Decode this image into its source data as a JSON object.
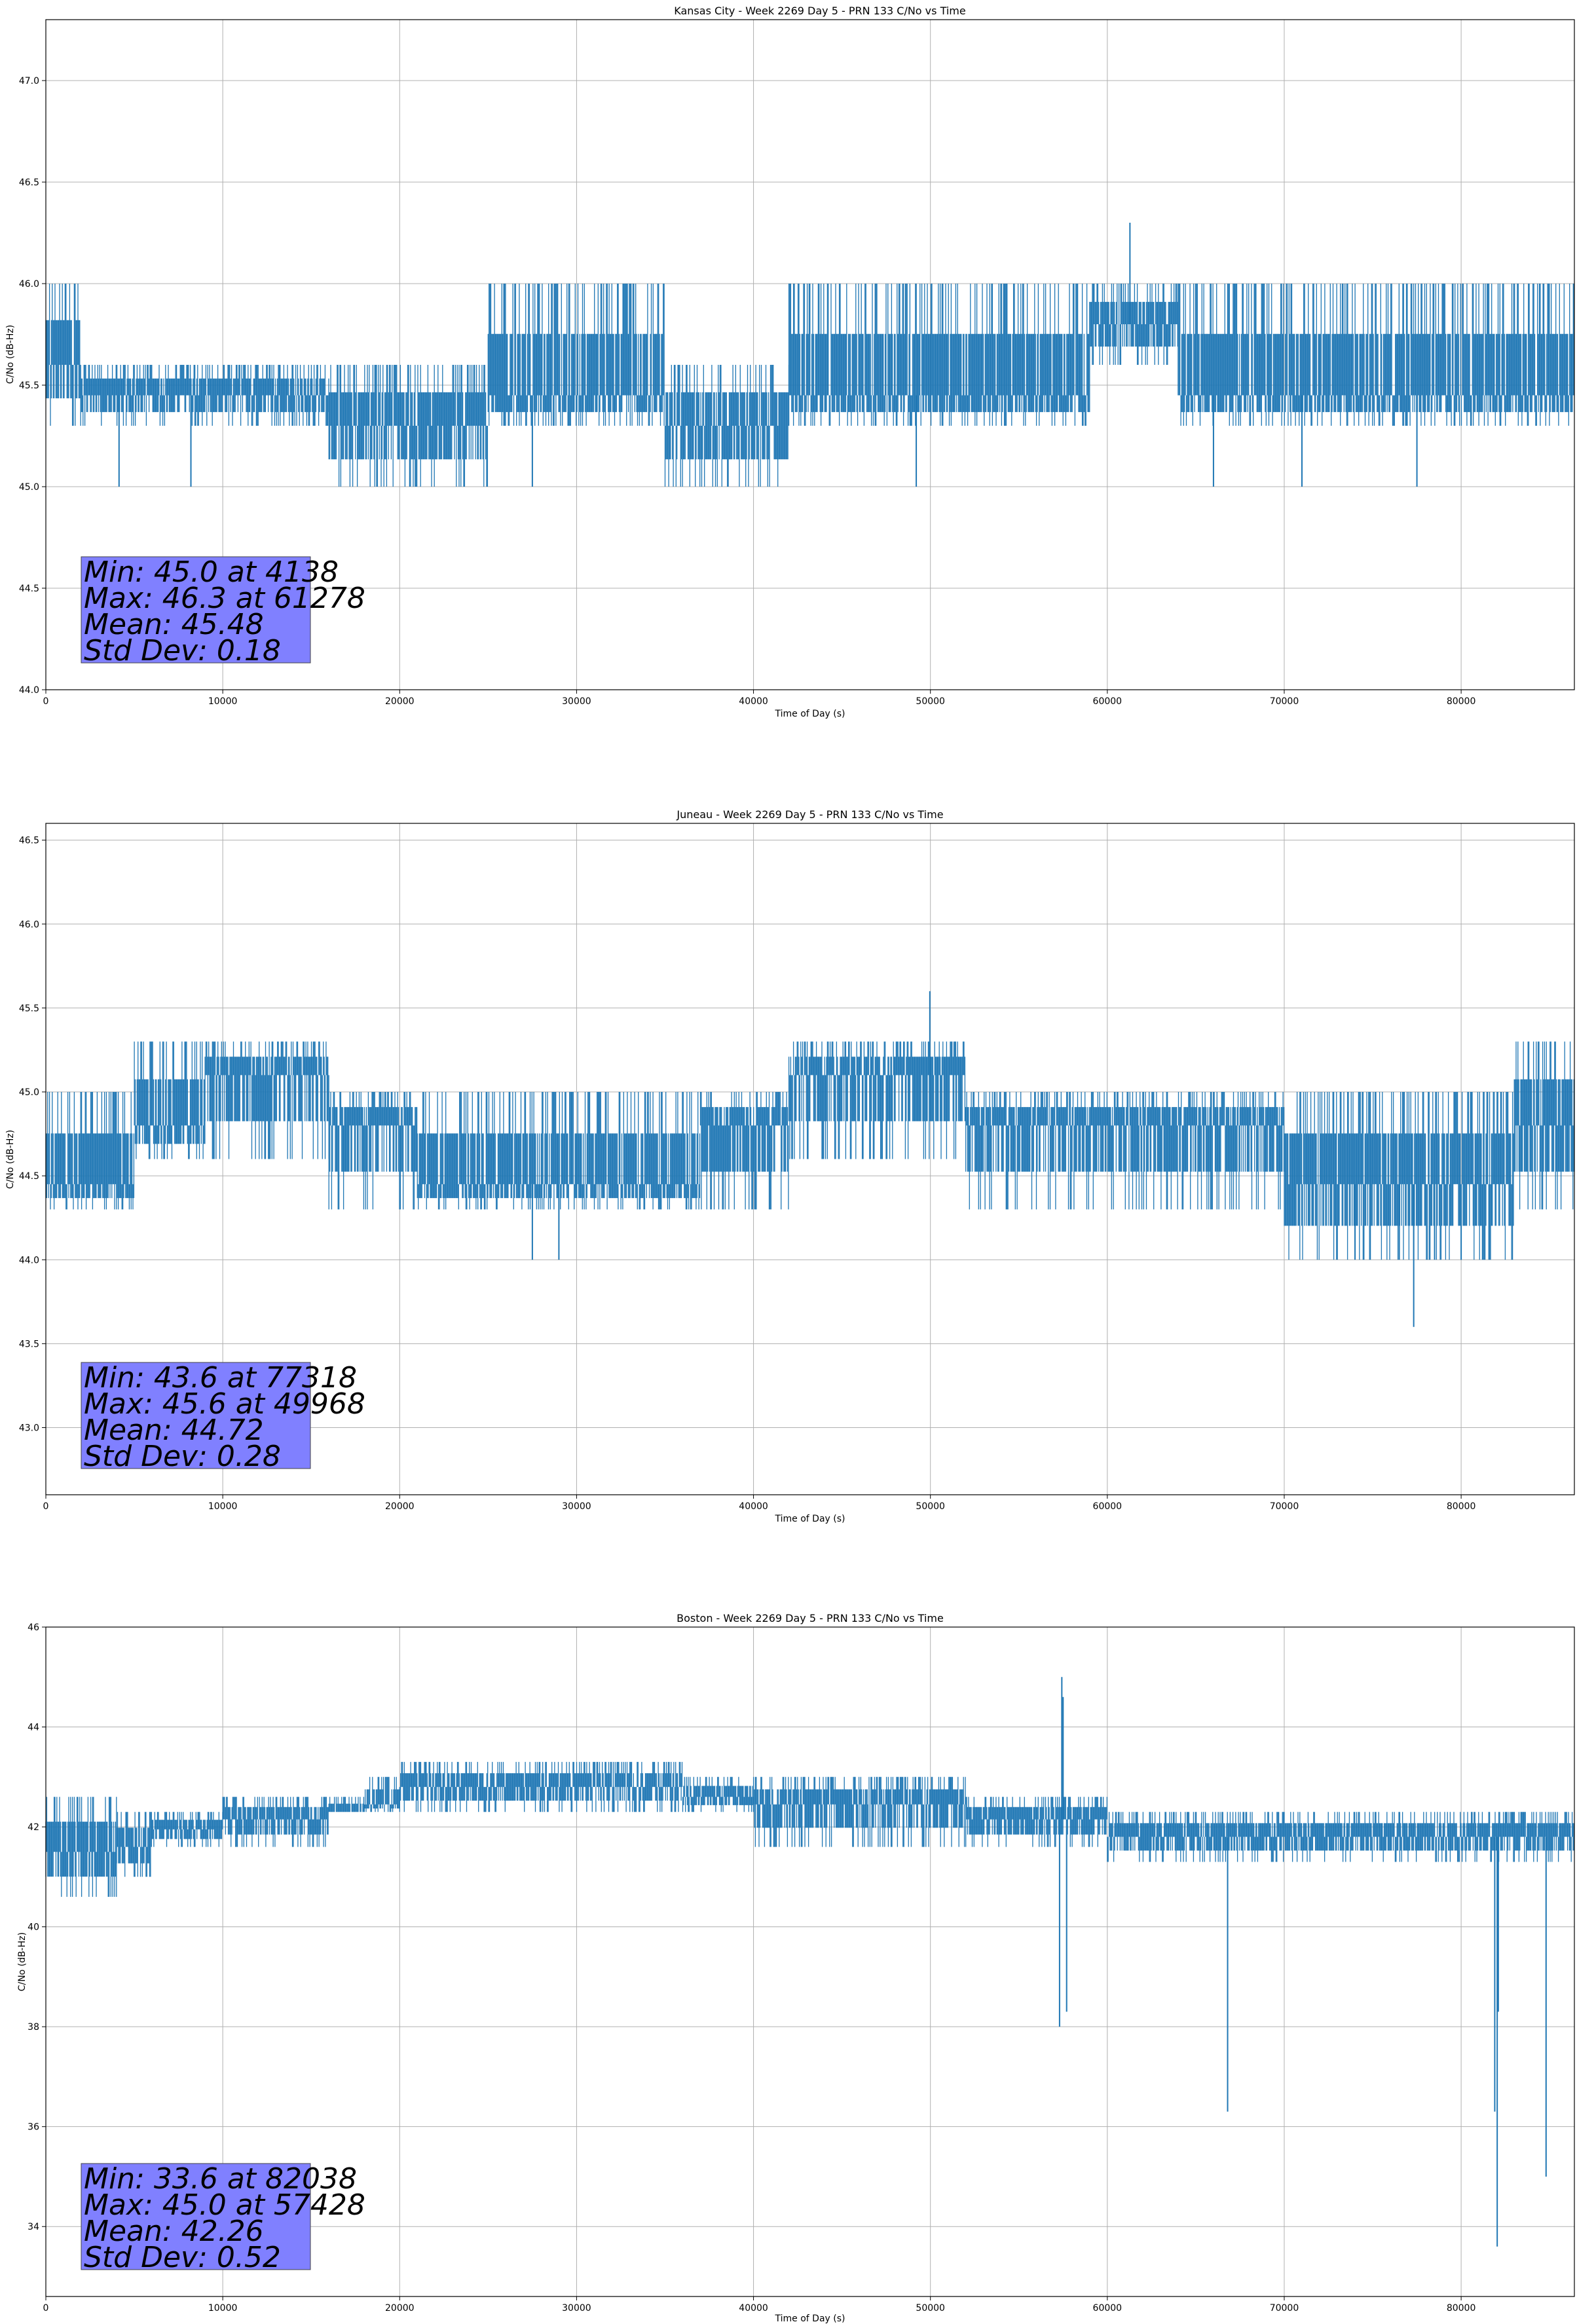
{
  "chart_data": [
    {
      "type": "line",
      "title": "Kansas City - Week 2269 Day 5 - PRN 133 C/No vs Time",
      "xlabel": "Time of Day (s)",
      "ylabel": "C/No (dB-Hz)",
      "xlim": [
        0,
        86400
      ],
      "ylim": [
        44.0,
        47.3
      ],
      "xticks": [
        0,
        10000,
        20000,
        30000,
        40000,
        50000,
        60000,
        70000,
        80000
      ],
      "yticks": [
        44.0,
        44.5,
        45.0,
        45.5,
        46.0,
        46.5,
        47.0
      ],
      "ytick_labels": [
        "44.0",
        "44.5",
        "45.0",
        "45.5",
        "46.0",
        "46.5",
        "47.0"
      ],
      "grid": true,
      "color": "#1f77b4",
      "band_levels": [
        45.0,
        45.3,
        45.6,
        46.0
      ],
      "series_summary": [
        {
          "x_start": 0,
          "x_end": 2000,
          "base": 45.6,
          "high": 46.0,
          "low": 45.3
        },
        {
          "x_start": 2000,
          "x_end": 16000,
          "base": 45.45,
          "high": 45.6,
          "low": 45.3
        },
        {
          "x_start": 16000,
          "x_end": 25000,
          "base": 45.3,
          "high": 45.6,
          "low": 45.0
        },
        {
          "x_start": 25000,
          "x_end": 35000,
          "base": 45.45,
          "high": 46.0,
          "low": 45.3
        },
        {
          "x_start": 35000,
          "x_end": 42000,
          "base": 45.3,
          "high": 45.6,
          "low": 45.0
        },
        {
          "x_start": 42000,
          "x_end": 59000,
          "base": 45.45,
          "high": 46.0,
          "low": 45.3
        },
        {
          "x_start": 59000,
          "x_end": 64000,
          "base": 45.8,
          "high": 46.0,
          "low": 45.6
        },
        {
          "x_start": 64000,
          "x_end": 86400,
          "base": 45.45,
          "high": 46.0,
          "low": 45.3
        }
      ],
      "spikes": [
        [
          61278,
          46.3
        ],
        [
          4138,
          45.0
        ],
        [
          8200,
          45.0
        ],
        [
          27500,
          45.0
        ],
        [
          49200,
          45.0
        ],
        [
          66000,
          45.0
        ],
        [
          71000,
          45.0
        ],
        [
          77500,
          45.0
        ]
      ],
      "stats": {
        "min": "Min: 45.0 at 4138",
        "max": "Max: 46.3 at 61278",
        "mean": "Mean: 45.48",
        "std": "Std Dev: 0.18"
      }
    },
    {
      "type": "line",
      "title": "Juneau - Week 2269 Day 5 - PRN 133 C/No vs Time",
      "xlabel": "Time of Day (s)",
      "ylabel": "C/No (dB-Hz)",
      "xlim": [
        0,
        86400
      ],
      "ylim": [
        42.6,
        46.6
      ],
      "xticks": [
        0,
        10000,
        20000,
        30000,
        40000,
        50000,
        60000,
        70000,
        80000
      ],
      "yticks": [
        43.0,
        43.5,
        44.0,
        44.5,
        45.0,
        45.5,
        46.0,
        46.5
      ],
      "ytick_labels": [
        "43.0",
        "43.5",
        "44.0",
        "44.5",
        "45.0",
        "45.5",
        "46.0",
        "46.5"
      ],
      "grid": true,
      "color": "#1f77b4",
      "series_summary": [
        {
          "x_start": 0,
          "x_end": 5000,
          "base": 44.45,
          "high": 45.0,
          "low": 44.3
        },
        {
          "x_start": 5000,
          "x_end": 9000,
          "base": 44.8,
          "high": 45.3,
          "low": 44.6
        },
        {
          "x_start": 9000,
          "x_end": 16000,
          "base": 45.1,
          "high": 45.3,
          "low": 44.6
        },
        {
          "x_start": 16000,
          "x_end": 21000,
          "base": 44.8,
          "high": 45.0,
          "low": 44.3
        },
        {
          "x_start": 21000,
          "x_end": 37000,
          "base": 44.45,
          "high": 45.0,
          "low": 44.3
        },
        {
          "x_start": 37000,
          "x_end": 42000,
          "base": 44.8,
          "high": 45.0,
          "low": 44.3
        },
        {
          "x_start": 42000,
          "x_end": 52000,
          "base": 45.1,
          "high": 45.3,
          "low": 44.6
        },
        {
          "x_start": 52000,
          "x_end": 70000,
          "base": 44.8,
          "high": 45.0,
          "low": 44.3
        },
        {
          "x_start": 70000,
          "x_end": 83000,
          "base": 44.45,
          "high": 45.0,
          "low": 44.0
        },
        {
          "x_start": 83000,
          "x_end": 86400,
          "base": 44.8,
          "high": 45.3,
          "low": 44.3
        }
      ],
      "spikes": [
        [
          49968,
          45.6
        ],
        [
          77318,
          43.6
        ],
        [
          27500,
          44.0
        ],
        [
          29000,
          44.0
        ],
        [
          74000,
          44.0
        ],
        [
          76500,
          44.0
        ],
        [
          78500,
          44.0
        ],
        [
          80000,
          44.0
        ]
      ],
      "stats": {
        "min": "Min: 43.6 at 77318",
        "max": "Max: 45.6 at 49968",
        "mean": "Mean: 44.72",
        "std": "Std Dev: 0.28"
      }
    },
    {
      "type": "line",
      "title": "Boston - Week 2269 Day 5 - PRN 133 C/No vs Time",
      "xlabel": "Time of Day (s)",
      "ylabel": "C/No (dB-Hz)",
      "xlim": [
        0,
        86400
      ],
      "ylim": [
        32.6,
        46.0
      ],
      "xticks": [
        0,
        10000,
        20000,
        30000,
        40000,
        50000,
        60000,
        70000,
        80000
      ],
      "yticks": [
        34,
        36,
        38,
        40,
        42,
        44,
        46
      ],
      "ytick_labels": [
        "34",
        "36",
        "38",
        "40",
        "42",
        "44",
        "46"
      ],
      "grid": true,
      "color": "#1f77b4",
      "series_summary": [
        {
          "x_start": 0,
          "x_end": 4000,
          "base": 41.5,
          "high": 42.6,
          "low": 40.6
        },
        {
          "x_start": 4000,
          "x_end": 6000,
          "base": 41.6,
          "high": 42.3,
          "low": 41.0
        },
        {
          "x_start": 6000,
          "x_end": 10000,
          "base": 41.95,
          "high": 42.3,
          "low": 41.6
        },
        {
          "x_start": 10000,
          "x_end": 16000,
          "base": 42.15,
          "high": 42.6,
          "low": 41.6
        },
        {
          "x_start": 16000,
          "x_end": 18000,
          "base": 42.3,
          "high": 42.6,
          "low": 42.3
        },
        {
          "x_start": 18000,
          "x_end": 20000,
          "base": 42.45,
          "high": 43.0,
          "low": 42.3
        },
        {
          "x_start": 20000,
          "x_end": 36000,
          "base": 42.8,
          "high": 43.3,
          "low": 42.3
        },
        {
          "x_start": 36000,
          "x_end": 40000,
          "base": 42.6,
          "high": 43.0,
          "low": 42.3
        },
        {
          "x_start": 40000,
          "x_end": 52000,
          "base": 42.45,
          "high": 43.0,
          "low": 41.6
        },
        {
          "x_start": 52000,
          "x_end": 60000,
          "base": 42.15,
          "high": 42.6,
          "low": 41.6
        },
        {
          "x_start": 60000,
          "x_end": 86400,
          "base": 41.8,
          "high": 42.3,
          "low": 41.3
        }
      ],
      "spikes": [
        [
          57428,
          45.0
        ],
        [
          57300,
          38.0
        ],
        [
          57500,
          44.6
        ],
        [
          57700,
          38.3
        ],
        [
          66800,
          36.3
        ],
        [
          82038,
          33.6
        ],
        [
          81900,
          36.3
        ],
        [
          82100,
          38.3
        ],
        [
          84800,
          35.0
        ]
      ],
      "stats": {
        "min": "Min: 33.6 at 82038",
        "max": "Max: 45.0 at 57428",
        "mean": "Mean: 42.26",
        "std": "Std Dev: 0.52"
      }
    }
  ]
}
